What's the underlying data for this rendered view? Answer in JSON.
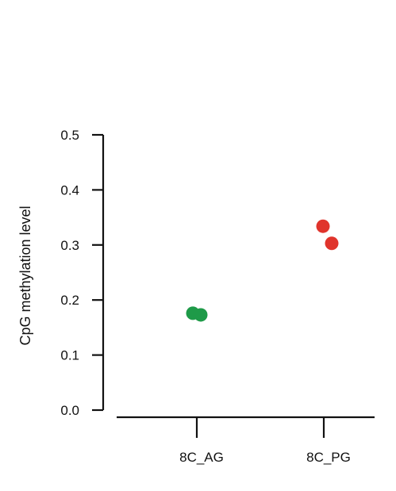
{
  "chart_data": {
    "type": "scatter",
    "title": "",
    "xlabel": "",
    "ylabel": "CpG methylation level",
    "ylim": [
      0.0,
      0.5
    ],
    "yticks": [
      "0.0",
      "0.1",
      "0.2",
      "0.3",
      "0.4",
      "0.5"
    ],
    "categories": [
      "8C_AG",
      "8C_PG"
    ],
    "grid": false,
    "legend": "none",
    "series": [
      {
        "category": "8C_AG",
        "color": "#1e9a48",
        "values": [
          0.176,
          0.173
        ]
      },
      {
        "category": "8C_PG",
        "color": "#e0342c",
        "values": [
          0.334,
          0.303
        ]
      }
    ]
  }
}
